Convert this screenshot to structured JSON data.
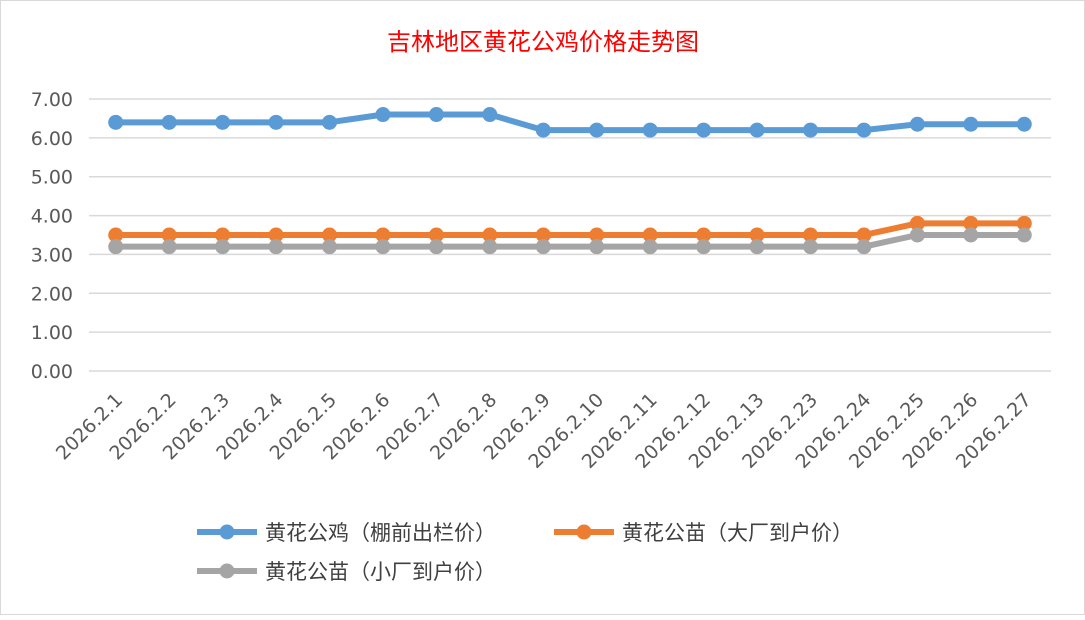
{
  "chart_data": {
    "type": "line",
    "title": "吉林地区黄花公鸡价格走势图",
    "xlabel": "",
    "ylabel": "",
    "ylim": [
      0,
      7
    ],
    "yticks": [
      "0.00",
      "1.00",
      "2.00",
      "3.00",
      "4.00",
      "5.00",
      "6.00",
      "7.00"
    ],
    "grid": true,
    "legend_position": "bottom",
    "categories": [
      "2026.2.1",
      "2026.2.2",
      "2026.2.3",
      "2026.2.4",
      "2026.2.5",
      "2026.2.6",
      "2026.2.7",
      "2026.2.8",
      "2026.2.9",
      "2026.2.10",
      "2026.2.11",
      "2026.2.12",
      "2026.2.13",
      "2026.2.23",
      "2026.2.24",
      "2026.2.25",
      "2026.2.26",
      "2026.2.27"
    ],
    "series": [
      {
        "name": "黄花公鸡（棚前出栏价）",
        "color": "#5b9bd5",
        "values": [
          6.4,
          6.4,
          6.4,
          6.4,
          6.4,
          6.6,
          6.6,
          6.6,
          6.2,
          6.2,
          6.2,
          6.2,
          6.2,
          6.2,
          6.2,
          6.35,
          6.35,
          6.35
        ]
      },
      {
        "name": "黄花公苗（大厂到户价）",
        "color": "#ed7d31",
        "values": [
          3.5,
          3.5,
          3.5,
          3.5,
          3.5,
          3.5,
          3.5,
          3.5,
          3.5,
          3.5,
          3.5,
          3.5,
          3.5,
          3.5,
          3.5,
          3.8,
          3.8,
          3.8
        ]
      },
      {
        "name": "黄花公苗（小厂到户价）",
        "color": "#a5a5a5",
        "values": [
          3.2,
          3.2,
          3.2,
          3.2,
          3.2,
          3.2,
          3.2,
          3.2,
          3.2,
          3.2,
          3.2,
          3.2,
          3.2,
          3.2,
          3.2,
          3.5,
          3.5,
          3.5
        ]
      }
    ]
  }
}
